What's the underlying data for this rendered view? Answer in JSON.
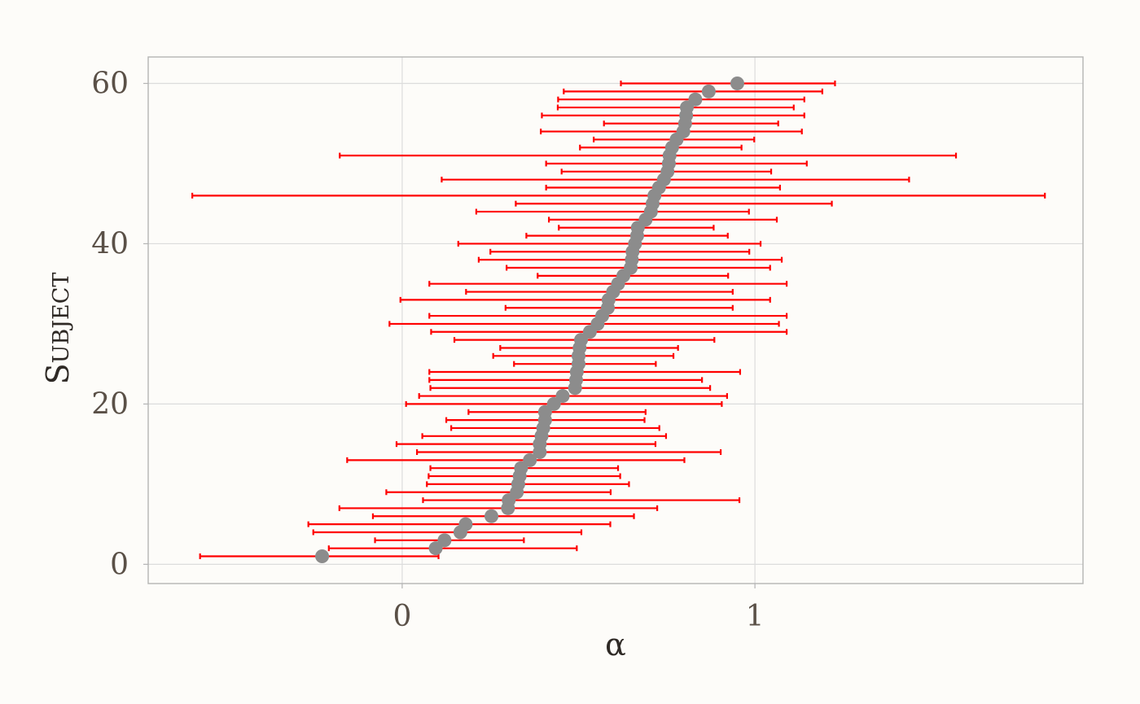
{
  "chart_data": {
    "type": "scatter",
    "xlabel": "α",
    "ylabel": "Subject",
    "xlim": [
      -0.72,
      1.93
    ],
    "ylim": [
      -2.4,
      63.3
    ],
    "x_ticks": [
      0,
      1
    ],
    "x_tick_labels": [
      "0",
      "1"
    ],
    "y_ticks": [
      0,
      20,
      40,
      60
    ],
    "y_tick_labels": [
      "0",
      "20",
      "40",
      "60"
    ],
    "grid": true,
    "colors": {
      "point": "#8c8c8c",
      "error_bar": "#ff0000",
      "grid": "#dcdcdc",
      "panel_border": "#b4b4b4",
      "background": "#fdfcf9"
    },
    "series": [
      {
        "subject": [
          1,
          2,
          3,
          4,
          5,
          6,
          7,
          8,
          9,
          10,
          11,
          12,
          13,
          14,
          15,
          16,
          17,
          18,
          19,
          20,
          21,
          22,
          23,
          24,
          25,
          26,
          27,
          28,
          29,
          30,
          31,
          32,
          33,
          34,
          35,
          36,
          37,
          38,
          39,
          40,
          41,
          42,
          43,
          44,
          45,
          46,
          47,
          48,
          49,
          50,
          51,
          52,
          53,
          54,
          55,
          56,
          57,
          58,
          59,
          60
        ],
        "alpha": [
          -0.227,
          0.095,
          0.12,
          0.165,
          0.18,
          0.253,
          0.3,
          0.302,
          0.325,
          0.329,
          0.333,
          0.337,
          0.362,
          0.39,
          0.39,
          0.395,
          0.4,
          0.405,
          0.405,
          0.43,
          0.455,
          0.49,
          0.493,
          0.495,
          0.5,
          0.5,
          0.503,
          0.507,
          0.532,
          0.554,
          0.567,
          0.583,
          0.585,
          0.598,
          0.612,
          0.627,
          0.648,
          0.651,
          0.653,
          0.66,
          0.666,
          0.668,
          0.69,
          0.705,
          0.71,
          0.715,
          0.728,
          0.742,
          0.752,
          0.756,
          0.758,
          0.765,
          0.778,
          0.797,
          0.802,
          0.805,
          0.807,
          0.831,
          0.869,
          0.95
        ],
        "lower": [
          -0.573,
          -0.208,
          -0.077,
          -0.252,
          -0.266,
          -0.083,
          -0.178,
          0.059,
          -0.045,
          0.07,
          0.075,
          0.08,
          -0.156,
          0.042,
          -0.016,
          0.057,
          0.139,
          0.125,
          0.188,
          0.011,
          0.048,
          0.08,
          0.077,
          0.077,
          0.317,
          0.258,
          0.278,
          0.148,
          0.082,
          -0.036,
          0.077,
          0.293,
          -0.005,
          0.181,
          0.077,
          0.384,
          0.296,
          0.217,
          0.25,
          0.159,
          0.352,
          0.444,
          0.416,
          0.21,
          0.322,
          -0.595,
          0.408,
          0.112,
          0.452,
          0.408,
          -0.177,
          0.504,
          0.543,
          0.393,
          0.572,
          0.396,
          0.441,
          0.442,
          0.458,
          0.62
        ],
        "upper": [
          0.103,
          0.495,
          0.345,
          0.508,
          0.59,
          0.657,
          0.723,
          0.956,
          0.591,
          0.643,
          0.618,
          0.612,
          0.8,
          0.903,
          0.718,
          0.748,
          0.729,
          0.687,
          0.69,
          0.906,
          0.921,
          0.873,
          0.85,
          0.958,
          0.719,
          0.769,
          0.782,
          0.885,
          1.09,
          1.068,
          1.09,
          0.937,
          1.043,
          0.937,
          1.09,
          0.924,
          1.043,
          1.076,
          0.984,
          1.016,
          0.923,
          0.883,
          1.062,
          0.983,
          1.218,
          1.822,
          1.071,
          1.437,
          1.046,
          1.147,
          1.57,
          0.962,
          0.998,
          1.133,
          1.066,
          1.14,
          1.11,
          1.14,
          1.191,
          1.227
        ]
      }
    ]
  }
}
